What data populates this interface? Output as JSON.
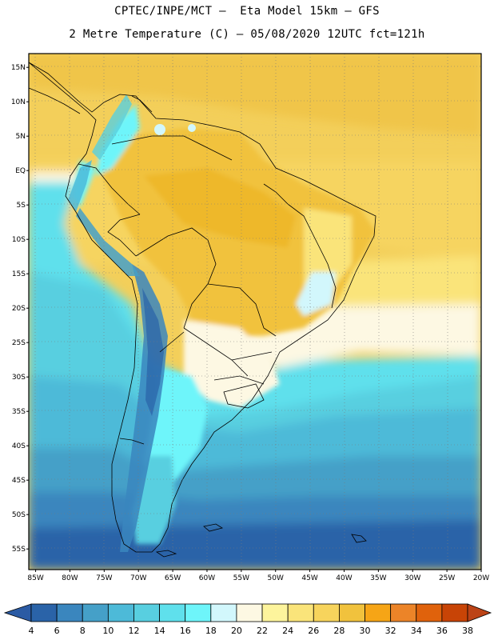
{
  "header": {
    "line1": "CPTEC/INPE/MCT –  Eta Model 15km – GFS",
    "line2": "2 Metre Temperature (C) – 05/08/2020 12UTC fct=121h"
  },
  "map": {
    "lon_range": [
      -86,
      -20
    ],
    "lat_range": [
      -58,
      17
    ],
    "lat_labels": [
      {
        "lat": 15,
        "label": "15N"
      },
      {
        "lat": 10,
        "label": "10N"
      },
      {
        "lat": 5,
        "label": "5N"
      },
      {
        "lat": 0,
        "label": "EQ"
      },
      {
        "lat": -5,
        "label": "5S"
      },
      {
        "lat": -10,
        "label": "10S"
      },
      {
        "lat": -15,
        "label": "15S"
      },
      {
        "lat": -20,
        "label": "20S"
      },
      {
        "lat": -25,
        "label": "25S"
      },
      {
        "lat": -30,
        "label": "30S"
      },
      {
        "lat": -35,
        "label": "35S"
      },
      {
        "lat": -40,
        "label": "40S"
      },
      {
        "lat": -45,
        "label": "45S"
      },
      {
        "lat": -50,
        "label": "50S"
      },
      {
        "lat": -55,
        "label": "55S"
      }
    ],
    "lon_labels": [
      {
        "lon": -85,
        "label": "85W"
      },
      {
        "lon": -80,
        "label": "80W"
      },
      {
        "lon": -75,
        "label": "75W"
      },
      {
        "lon": -70,
        "label": "70W"
      },
      {
        "lon": -65,
        "label": "65W"
      },
      {
        "lon": -60,
        "label": "60W"
      },
      {
        "lon": -55,
        "label": "55W"
      },
      {
        "lon": -50,
        "label": "50W"
      },
      {
        "lon": -45,
        "label": "45W"
      },
      {
        "lon": -40,
        "label": "40W"
      },
      {
        "lon": -35,
        "label": "35W"
      },
      {
        "lon": -30,
        "label": "30W"
      },
      {
        "lon": -25,
        "label": "25W"
      },
      {
        "lon": -20,
        "label": "20W"
      }
    ]
  },
  "colorbar": {
    "labels": [
      "4",
      "6",
      "8",
      "10",
      "12",
      "14",
      "16",
      "18",
      "20",
      "22",
      "24",
      "26",
      "28",
      "30",
      "32",
      "34",
      "36",
      "38"
    ],
    "colors": [
      "#2a63a8",
      "#3a86be",
      "#45a0c8",
      "#4dbad8",
      "#58cfe0",
      "#5fe0ec",
      "#6ef5fa",
      "#d2f7fc",
      "#fdf8e3",
      "#fdf49c",
      "#fae47a",
      "#f7d45c",
      "#f1c23d",
      "#f6a516",
      "#ec8428",
      "#e0620c",
      "#c84406"
    ],
    "under_color": "#2b5ba4",
    "over_color": "#bc4316"
  }
}
